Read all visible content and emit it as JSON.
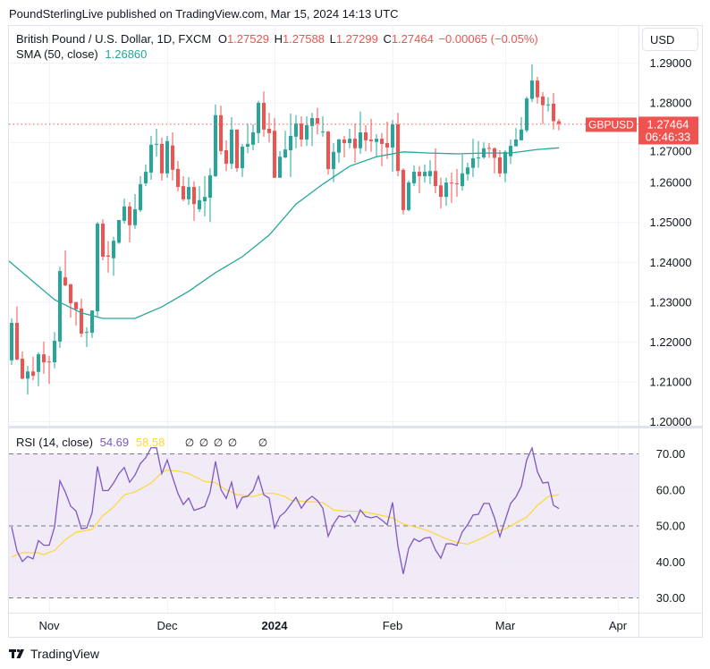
{
  "publisher_line": "PoundSterlingLive published on TradingView.com, Mar 15, 2024 14:13 UTC",
  "legend": {
    "symbol_desc": "British Pound / U.S. Dollar, 1D, FXCM",
    "o_label": "O",
    "o_value": "1.27529",
    "h_label": "H",
    "h_value": "1.27588",
    "l_label": "L",
    "l_value": "1.27299",
    "c_label": "C",
    "c_value": "1.27464",
    "change": "−0.00065 (−0.05%)",
    "sma_label": "SMA (50, close)",
    "sma_value": "1.26860"
  },
  "rsi_legend": {
    "label": "RSI (14, close)",
    "rsi_value": "54.69",
    "ma_value": "58.58",
    "hidden_values": [
      "∅",
      "∅",
      "∅",
      "∅",
      "∅"
    ]
  },
  "currency_button": "USD",
  "last_price_tag": {
    "symbol": "GBPUSD",
    "price": "1.27464",
    "countdown": "06:46:33"
  },
  "footer": {
    "brand": "TradingView"
  },
  "colors": {
    "up": "#26a69a",
    "down": "#ef5350",
    "sma": "#26a69a",
    "rsi": "#7e57c2",
    "rsi_ma": "#fdd835",
    "rsi_band": "#ede7f6"
  },
  "chart_data": {
    "type": "candlestick",
    "price_axis": {
      "ticks": [
        "1.29000",
        "1.28000",
        "1.27000",
        "1.26000",
        "1.25000",
        "1.24000",
        "1.23000",
        "1.22000",
        "1.21000",
        "1.20000"
      ],
      "range": [
        1.2,
        1.29
      ]
    },
    "rsi_axis": {
      "ticks": [
        "70.00",
        "60.00",
        "50.00",
        "40.00",
        "30.00"
      ],
      "range": [
        30,
        70
      ],
      "bands": [
        70,
        50,
        30
      ]
    },
    "time_axis": {
      "ticks": [
        {
          "label": "Nov",
          "date": "2023-11-01",
          "bold": false
        },
        {
          "label": "Dec",
          "date": "2023-12-01",
          "bold": false
        },
        {
          "label": "2024",
          "date": "2024-01-02",
          "bold": true
        },
        {
          "label": "Feb",
          "date": "2024-02-01",
          "bold": false
        },
        {
          "label": "Mar",
          "date": "2024-03-01",
          "bold": false
        },
        {
          "label": "Apr",
          "date": "2024-04-01",
          "bold": false
        }
      ]
    },
    "candles_columns": [
      "date",
      "open",
      "high",
      "low",
      "close",
      "rsi"
    ],
    "candles": [
      [
        "2023-10-23",
        1.2153,
        1.2258,
        1.2141,
        1.2247,
        49.6
      ],
      [
        "2023-10-24",
        1.2247,
        1.2288,
        1.2153,
        1.2155,
        42.9
      ],
      [
        "2023-10-25",
        1.2157,
        1.2175,
        1.2105,
        1.2107,
        40.0
      ],
      [
        "2023-10-26",
        1.2107,
        1.2139,
        1.2067,
        1.2125,
        41.4
      ],
      [
        "2023-10-27",
        1.2125,
        1.2162,
        1.2103,
        1.2114,
        40.7
      ],
      [
        "2023-10-30",
        1.2124,
        1.2173,
        1.2088,
        1.2168,
        45.8
      ],
      [
        "2023-10-31",
        1.2168,
        1.22,
        1.2119,
        1.2148,
        44.5
      ],
      [
        "2023-11-01",
        1.215,
        1.2164,
        1.2094,
        1.2148,
        44.5
      ],
      [
        "2023-11-02",
        1.2148,
        1.2224,
        1.2133,
        1.2202,
        49.6
      ],
      [
        "2023-11-03",
        1.22,
        1.2388,
        1.2184,
        1.2377,
        62.4
      ],
      [
        "2023-11-06",
        1.2361,
        1.2429,
        1.2339,
        1.2341,
        59.3
      ],
      [
        "2023-11-07",
        1.2344,
        1.2344,
        1.226,
        1.2296,
        55.4
      ],
      [
        "2023-11-08",
        1.2299,
        1.2299,
        1.224,
        1.2281,
        54.0
      ],
      [
        "2023-11-09",
        1.2283,
        1.2308,
        1.2211,
        1.222,
        49.1
      ],
      [
        "2023-11-10",
        1.2222,
        1.2236,
        1.2186,
        1.2224,
        49.3
      ],
      [
        "2023-11-13",
        1.2222,
        1.2278,
        1.2209,
        1.2278,
        53.5
      ],
      [
        "2023-11-14",
        1.2276,
        1.25,
        1.226,
        1.2496,
        66.4
      ],
      [
        "2023-11-15",
        1.2496,
        1.2507,
        1.2404,
        1.2413,
        59.7
      ],
      [
        "2023-11-16",
        1.2416,
        1.2452,
        1.2373,
        1.2413,
        59.7
      ],
      [
        "2023-11-17",
        1.2409,
        1.2463,
        1.2365,
        1.2453,
        61.8
      ],
      [
        "2023-11-20",
        1.2448,
        1.2505,
        1.2445,
        1.2505,
        64.4
      ],
      [
        "2023-11-21",
        1.2503,
        1.2559,
        1.2496,
        1.2539,
        66.1
      ],
      [
        "2023-11-22",
        1.2539,
        1.255,
        1.2449,
        1.2492,
        62.0
      ],
      [
        "2023-11-23",
        1.2492,
        1.257,
        1.2483,
        1.2532,
        64.0
      ],
      [
        "2023-11-24",
        1.253,
        1.2615,
        1.2525,
        1.2595,
        67.2
      ],
      [
        "2023-11-27",
        1.2597,
        1.2644,
        1.259,
        1.2626,
        68.8
      ],
      [
        "2023-11-28",
        1.2624,
        1.2716,
        1.2606,
        1.2694,
        71.6
      ],
      [
        "2023-11-29",
        1.2694,
        1.2734,
        1.2664,
        1.2696,
        71.6
      ],
      [
        "2023-11-30",
        1.2696,
        1.2712,
        1.2604,
        1.2622,
        64.4
      ],
      [
        "2023-12-01",
        1.2622,
        1.2716,
        1.2611,
        1.2703,
        68.2
      ],
      [
        "2023-12-04",
        1.2692,
        1.2725,
        1.2604,
        1.2631,
        63.4
      ],
      [
        "2023-12-05",
        1.2633,
        1.2653,
        1.2577,
        1.2588,
        58.9
      ],
      [
        "2023-12-06",
        1.259,
        1.2615,
        1.2552,
        1.2557,
        55.8
      ],
      [
        "2023-12-07",
        1.2557,
        1.2613,
        1.2543,
        1.2588,
        57.6
      ],
      [
        "2023-12-08",
        1.2588,
        1.2602,
        1.2503,
        1.2545,
        54.2
      ],
      [
        "2023-12-11",
        1.2532,
        1.259,
        1.2525,
        1.2555,
        54.7
      ],
      [
        "2023-12-12",
        1.2552,
        1.2615,
        1.2514,
        1.2563,
        55.3
      ],
      [
        "2023-12-13",
        1.2561,
        1.2635,
        1.25,
        1.2617,
        59.3
      ],
      [
        "2023-12-14",
        1.2615,
        1.2795,
        1.2613,
        1.2768,
        67.8
      ],
      [
        "2023-12-15",
        1.2768,
        1.2792,
        1.2669,
        1.2678,
        60.0
      ],
      [
        "2023-12-18",
        1.268,
        1.2705,
        1.2628,
        1.2646,
        57.5
      ],
      [
        "2023-12-19",
        1.2646,
        1.2763,
        1.2633,
        1.2732,
        62.0
      ],
      [
        "2023-12-20",
        1.2732,
        1.2732,
        1.2626,
        1.2635,
        54.9
      ],
      [
        "2023-12-21",
        1.2635,
        1.2696,
        1.2613,
        1.2689,
        57.8
      ],
      [
        "2023-12-22",
        1.2689,
        1.2747,
        1.2673,
        1.2696,
        58.1
      ],
      [
        "2023-12-26",
        1.2694,
        1.2745,
        1.268,
        1.2725,
        59.7
      ],
      [
        "2023-12-27",
        1.2723,
        1.2804,
        1.2698,
        1.2799,
        63.7
      ],
      [
        "2023-12-28",
        1.2799,
        1.2828,
        1.2714,
        1.2732,
        58.5
      ],
      [
        "2023-12-29",
        1.2734,
        1.2774,
        1.27,
        1.2723,
        57.6
      ],
      [
        "2024-01-02",
        1.2729,
        1.2761,
        1.2611,
        1.2611,
        49.3
      ],
      [
        "2024-01-03",
        1.2611,
        1.2678,
        1.2611,
        1.2664,
        52.5
      ],
      [
        "2024-01-04",
        1.2662,
        1.2729,
        1.266,
        1.2682,
        53.8
      ],
      [
        "2024-01-05",
        1.268,
        1.2772,
        1.2613,
        1.2716,
        55.8
      ],
      [
        "2024-01-08",
        1.2714,
        1.2768,
        1.2685,
        1.2747,
        57.8
      ],
      [
        "2024-01-09",
        1.2747,
        1.2765,
        1.2689,
        1.2707,
        54.8
      ],
      [
        "2024-01-10",
        1.2707,
        1.2765,
        1.2691,
        1.2743,
        56.9
      ],
      [
        "2024-01-11",
        1.2741,
        1.2774,
        1.2691,
        1.2761,
        58.1
      ],
      [
        "2024-01-12",
        1.2761,
        1.2786,
        1.272,
        1.2747,
        56.9
      ],
      [
        "2024-01-15",
        1.2725,
        1.2765,
        1.2714,
        1.2727,
        54.8
      ],
      [
        "2024-01-16",
        1.2727,
        1.2729,
        1.2619,
        1.2633,
        47.0
      ],
      [
        "2024-01-17",
        1.2633,
        1.2698,
        1.26,
        1.2676,
        50.4
      ],
      [
        "2024-01-18",
        1.2674,
        1.2709,
        1.2649,
        1.2707,
        52.6
      ],
      [
        "2024-01-19",
        1.2707,
        1.2716,
        1.2662,
        1.2698,
        52.3
      ],
      [
        "2024-01-22",
        1.2698,
        1.2734,
        1.2685,
        1.2709,
        52.9
      ],
      [
        "2024-01-23",
        1.2709,
        1.2747,
        1.2649,
        1.2685,
        50.8
      ],
      [
        "2024-01-24",
        1.2685,
        1.2777,
        1.2671,
        1.2725,
        54.3
      ],
      [
        "2024-01-25",
        1.2725,
        1.2743,
        1.2678,
        1.2705,
        52.5
      ],
      [
        "2024-01-26",
        1.2707,
        1.2759,
        1.2676,
        1.2703,
        52.1
      ],
      [
        "2024-01-29",
        1.2701,
        1.2721,
        1.2662,
        1.2709,
        52.5
      ],
      [
        "2024-01-30",
        1.2709,
        1.2723,
        1.264,
        1.2696,
        51.5
      ],
      [
        "2024-01-31",
        1.2698,
        1.2752,
        1.2658,
        1.2687,
        50.2
      ],
      [
        "2024-02-01",
        1.2687,
        1.2756,
        1.2626,
        1.2745,
        56.4
      ],
      [
        "2024-02-02",
        1.2745,
        1.2774,
        1.2615,
        1.2628,
        44.2
      ],
      [
        "2024-02-05",
        1.2631,
        1.2635,
        1.2519,
        1.253,
        36.5
      ],
      [
        "2024-02-06",
        1.253,
        1.2604,
        1.2527,
        1.2599,
        43.6
      ],
      [
        "2024-02-07",
        1.2597,
        1.2642,
        1.259,
        1.2626,
        46.3
      ],
      [
        "2024-02-08",
        1.2626,
        1.264,
        1.2572,
        1.2615,
        45.5
      ],
      [
        "2024-02-09",
        1.2615,
        1.2644,
        1.2599,
        1.2626,
        46.5
      ],
      [
        "2024-02-12",
        1.2615,
        1.2655,
        1.2595,
        1.2628,
        46.7
      ],
      [
        "2024-02-13",
        1.2628,
        1.2685,
        1.2572,
        1.259,
        43.2
      ],
      [
        "2024-02-14",
        1.2592,
        1.2611,
        1.2534,
        1.2563,
        40.9
      ],
      [
        "2024-02-15",
        1.2563,
        1.2611,
        1.2541,
        1.2599,
        44.9
      ],
      [
        "2024-02-16",
        1.2599,
        1.2624,
        1.2548,
        1.2597,
        44.9
      ],
      [
        "2024-02-19",
        1.2597,
        1.2633,
        1.2563,
        1.2595,
        44.4
      ],
      [
        "2024-02-20",
        1.259,
        1.2669,
        1.2579,
        1.2622,
        48.2
      ],
      [
        "2024-02-21",
        1.262,
        1.2649,
        1.2604,
        1.2637,
        50.2
      ],
      [
        "2024-02-22",
        1.2636,
        1.2709,
        1.2613,
        1.266,
        52.9
      ],
      [
        "2024-02-23",
        1.266,
        1.2703,
        1.2636,
        1.2662,
        53.1
      ],
      [
        "2024-02-26",
        1.2662,
        1.27,
        1.2658,
        1.2685,
        56.1
      ],
      [
        "2024-02-27",
        1.2686,
        1.2698,
        1.2661,
        1.2684,
        56.1
      ],
      [
        "2024-02-28",
        1.2685,
        1.2687,
        1.2622,
        1.2661,
        52.1
      ],
      [
        "2024-02-29",
        1.2662,
        1.268,
        1.2613,
        1.2622,
        46.9
      ],
      [
        "2024-03-01",
        1.2622,
        1.268,
        1.26,
        1.2676,
        51.5
      ],
      [
        "2024-03-04",
        1.2665,
        1.2707,
        1.2646,
        1.2691,
        56.1
      ],
      [
        "2024-03-05",
        1.269,
        1.2736,
        1.269,
        1.2707,
        57.9
      ],
      [
        "2024-03-06",
        1.2705,
        1.2763,
        1.2705,
        1.2732,
        60.9
      ],
      [
        "2024-03-07",
        1.273,
        1.2815,
        1.2725,
        1.281,
        68.2
      ],
      [
        "2024-03-08",
        1.2809,
        1.2896,
        1.2801,
        1.2855,
        71.5
      ],
      [
        "2024-03-11",
        1.2855,
        1.2864,
        1.2797,
        1.2813,
        64.9
      ],
      [
        "2024-03-12",
        1.2815,
        1.2826,
        1.2746,
        1.2793,
        61.8
      ],
      [
        "2024-03-13",
        1.2793,
        1.2813,
        1.2777,
        1.2795,
        62.0
      ],
      [
        "2024-03-14",
        1.2797,
        1.2824,
        1.2732,
        1.2753,
        55.6
      ],
      [
        "2024-03-15",
        1.27529,
        1.27588,
        1.27299,
        1.27464,
        54.69
      ]
    ],
    "sma50": [
      [
        "2023-10-23",
        1.2402
      ],
      [
        "2023-11-02",
        1.2305
      ],
      [
        "2023-11-09",
        1.2272
      ],
      [
        "2023-11-15",
        1.2258
      ],
      [
        "2023-11-23",
        1.2258
      ],
      [
        "2023-11-30",
        1.2287
      ],
      [
        "2023-12-07",
        1.2326
      ],
      [
        "2023-12-14",
        1.2373
      ],
      [
        "2023-12-21",
        1.2413
      ],
      [
        "2023-12-29",
        1.2467
      ],
      [
        "2024-01-08",
        1.2545
      ],
      [
        "2024-01-15",
        1.2595
      ],
      [
        "2024-01-22",
        1.264
      ],
      [
        "2024-01-29",
        1.2664
      ],
      [
        "2024-02-05",
        1.2676
      ],
      [
        "2024-02-12",
        1.2673
      ],
      [
        "2024-02-19",
        1.2671
      ],
      [
        "2024-02-26",
        1.2673
      ],
      [
        "2024-03-04",
        1.2673
      ],
      [
        "2024-03-11",
        1.2682
      ],
      [
        "2024-03-15",
        1.2686
      ]
    ],
    "rsi_ma": [
      [
        "2023-10-23",
        41.2
      ],
      [
        "2023-10-25",
        42.5
      ],
      [
        "2023-10-30",
        42.4
      ],
      [
        "2023-10-31",
        41.9
      ],
      [
        "2023-11-02",
        43.1
      ],
      [
        "2023-11-06",
        46.0
      ],
      [
        "2023-11-08",
        48.1
      ],
      [
        "2023-11-13",
        48.9
      ],
      [
        "2023-11-15",
        52.7
      ],
      [
        "2023-11-17",
        55.1
      ],
      [
        "2023-11-21",
        58.5
      ],
      [
        "2023-11-23",
        59.3
      ],
      [
        "2023-11-28",
        61.8
      ],
      [
        "2023-11-30",
        64.7
      ],
      [
        "2023-12-01",
        65.4
      ],
      [
        "2023-12-05",
        65.1
      ],
      [
        "2023-12-07",
        64.4
      ],
      [
        "2023-12-12",
        62.2
      ],
      [
        "2023-12-14",
        61.9
      ],
      [
        "2023-12-18",
        59.9
      ],
      [
        "2023-12-20",
        58.6
      ],
      [
        "2023-12-26",
        58.0
      ],
      [
        "2023-12-28",
        58.9
      ],
      [
        "2024-01-02",
        58.9
      ],
      [
        "2024-01-04",
        58.0
      ],
      [
        "2024-01-05",
        57.0
      ],
      [
        "2024-01-10",
        56.6
      ],
      [
        "2024-01-15",
        56.4
      ],
      [
        "2024-01-17",
        54.3
      ],
      [
        "2024-01-19",
        54.0
      ],
      [
        "2024-01-24",
        53.9
      ],
      [
        "2024-01-29",
        53.1
      ],
      [
        "2024-02-01",
        52.1
      ],
      [
        "2024-02-05",
        50.4
      ],
      [
        "2024-02-08",
        49.3
      ],
      [
        "2024-02-12",
        48.3
      ],
      [
        "2024-02-15",
        46.3
      ],
      [
        "2024-02-19",
        45.3
      ],
      [
        "2024-02-21",
        44.8
      ],
      [
        "2024-02-26",
        46.7
      ],
      [
        "2024-02-28",
        48.3
      ],
      [
        "2024-03-01",
        49.0
      ],
      [
        "2024-03-05",
        50.7
      ],
      [
        "2024-03-07",
        52.3
      ],
      [
        "2024-03-11",
        55.6
      ],
      [
        "2024-03-13",
        58.0
      ],
      [
        "2024-03-15",
        58.58
      ]
    ],
    "last_price": 1.27464,
    "grid": true
  }
}
